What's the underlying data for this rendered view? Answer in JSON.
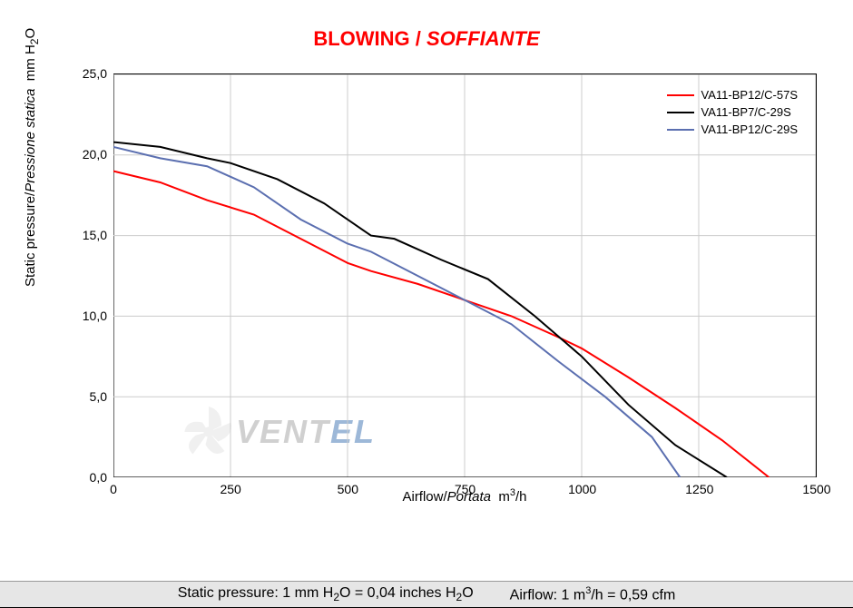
{
  "title": {
    "part1": "BLOWING",
    "separator": " / ",
    "part2": "SOFFIANTE",
    "color": "#ff0000",
    "fontsize": 22
  },
  "chart": {
    "type": "line",
    "background_color": "#ffffff",
    "grid_color": "#cccccc",
    "grid_width": 1,
    "border_color": "#000000",
    "xlim": [
      0,
      1500
    ],
    "ylim": [
      0,
      25
    ],
    "xtick_step": 250,
    "ytick_step": 5,
    "xticks": [
      "0",
      "250",
      "500",
      "750",
      "1000",
      "1250",
      "1500"
    ],
    "yticks": [
      "0,0",
      "5,0",
      "10,0",
      "15,0",
      "20,0",
      "25,0"
    ],
    "xlabel_plain": "Airflow",
    "xlabel_sep": "/",
    "xlabel_italic": "Portata",
    "xlabel_unit_base": "m",
    "xlabel_unit_sup": "3",
    "xlabel_unit_suffix": "/h",
    "ylabel_plain": "Static pressure",
    "ylabel_sep": "/",
    "ylabel_italic": "Pressione statica",
    "ylabel_unit_prefix": "mm  H",
    "ylabel_unit_sub": "2",
    "ylabel_unit_suffix": "O",
    "label_fontsize": 15,
    "tick_fontsize": 14,
    "line_width": 2,
    "series": [
      {
        "name": "VA11-BP12/C-57S",
        "color": "#ff0000",
        "x": [
          0,
          100,
          200,
          300,
          400,
          500,
          550,
          650,
          750,
          850,
          950,
          1000,
          1100,
          1200,
          1300,
          1400
        ],
        "y": [
          19.0,
          18.3,
          17.2,
          16.3,
          14.8,
          13.3,
          12.8,
          12.0,
          11.0,
          10.0,
          8.7,
          8.0,
          6.2,
          4.3,
          2.3,
          0.0
        ]
      },
      {
        "name": "VA11-BP7/C-29S",
        "color": "#000000",
        "x": [
          0,
          100,
          200,
          250,
          350,
          450,
          550,
          600,
          700,
          800,
          900,
          1000,
          1100,
          1200,
          1310
        ],
        "y": [
          20.8,
          20.5,
          19.8,
          19.5,
          18.5,
          17.0,
          15.0,
          14.8,
          13.5,
          12.3,
          10.0,
          7.5,
          4.5,
          2.0,
          0.0
        ]
      },
      {
        "name": "VA11-BP12/C-29S",
        "color": "#5b6fb0",
        "x": [
          0,
          100,
          200,
          300,
          400,
          500,
          550,
          650,
          750,
          850,
          950,
          1050,
          1150,
          1210
        ],
        "y": [
          20.5,
          19.8,
          19.3,
          18.0,
          16.0,
          14.5,
          14.0,
          12.5,
          11.0,
          9.5,
          7.2,
          5.0,
          2.5,
          0.0
        ]
      }
    ],
    "legend": {
      "position": "top-right",
      "fontsize": 13
    }
  },
  "watermark": {
    "text_part1": "VENT",
    "text_part2": "EL",
    "color1": "#d0d0d0",
    "color2": "#9db8d8",
    "fontsize": 36
  },
  "footer": {
    "background_color": "#e6e6e6",
    "fontsize": 16,
    "left_prefix": "Static pressure: 1 mm H",
    "left_sub": "2",
    "left_mid": "O = 0,04 inches H",
    "left_sub2": "2",
    "left_suffix": "O",
    "right_prefix": "Airflow: 1 m",
    "right_sup": "3",
    "right_suffix": "/h = 0,59 cfm"
  }
}
